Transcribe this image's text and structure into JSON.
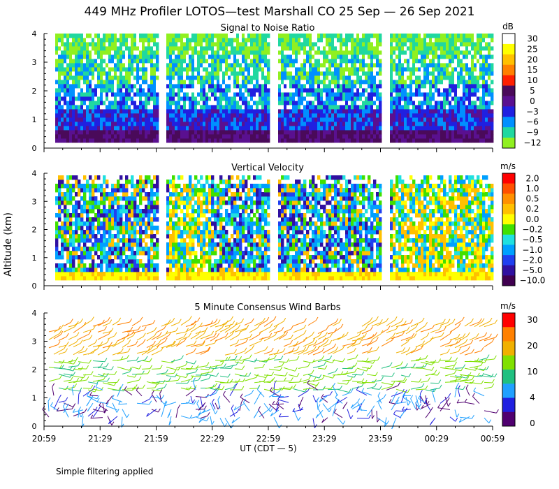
{
  "title": "449 MHz Profiler LOTOS—test Marshall CO 25 Sep — 26 Sep 2021",
  "y_axis_label": "Altitude (km)",
  "x_axis_label": "UT  (CDT — 5)",
  "footnote": "Simple filtering applied",
  "time_ticks": [
    "20:59",
    "21:29",
    "21:59",
    "22:29",
    "22:59",
    "23:29",
    "23:59",
    "00:29",
    "00:59"
  ],
  "altitude_ticks": [
    "0",
    "1",
    "2",
    "3",
    "4"
  ],
  "panels": [
    {
      "title": "Signal to Noise Ratio",
      "unit": "dB",
      "colorbar": {
        "labels": [
          "30",
          "25",
          "20",
          "15",
          "10",
          "5",
          "0",
          "−3",
          "−6",
          "−9",
          "−12"
        ],
        "colors": [
          "#ffffff",
          "#ffff00",
          "#ffc000",
          "#ff8000",
          "#ff2000",
          "#4a0a5a",
          "#5a1090",
          "#2020e0",
          "#0090ff",
          "#20d8a0",
          "#90f020"
        ]
      }
    },
    {
      "title": "Vertical Velocity",
      "unit": "m/s",
      "colorbar": {
        "labels": [
          "2.0",
          "1.0",
          "0.5",
          "0.2",
          "0.0",
          "−0.2",
          "−0.5",
          "−1.0",
          "−2.0",
          "−5.0",
          "−10.0"
        ],
        "colors": [
          "#ff0000",
          "#ff5000",
          "#ff9000",
          "#ffc000",
          "#ffff00",
          "#40e000",
          "#20e0e0",
          "#00a0ff",
          "#2040f0",
          "#3010a0",
          "#400050"
        ]
      }
    },
    {
      "title": "5 Minute Consensus Wind Barbs",
      "unit": "m/s",
      "colorbar": {
        "labels": [
          "30",
          "20",
          "10",
          "4",
          "0"
        ],
        "colors": [
          "#ff0000",
          "#ff8000",
          "#f0b000",
          "#80e000",
          "#20c080",
          "#20a0ff",
          "#2020e0",
          "#500070"
        ]
      }
    }
  ],
  "chart_data": [
    {
      "type": "heatmap",
      "title": "Signal to Noise Ratio",
      "unit": "dB",
      "x_range": [
        "20:59",
        "00:59"
      ],
      "ylim": [
        0,
        4
      ],
      "ylabel": "Altitude (km)",
      "xlabel": "UT  (CDT — 5)",
      "color_levels_dB": [
        30,
        25,
        20,
        15,
        10,
        5,
        0,
        -3,
        -6,
        -9,
        -12
      ],
      "data_gaps": [
        [
          "21:59",
          "22:04"
        ],
        [
          "23:01",
          "23:07"
        ],
        [
          "00:04",
          "00:10"
        ]
      ]
    },
    {
      "type": "heatmap",
      "title": "Vertical Velocity",
      "unit": "m/s",
      "x_range": [
        "20:59",
        "00:59"
      ],
      "ylim": [
        0,
        4
      ],
      "color_levels_ms": [
        2.0,
        1.0,
        0.5,
        0.2,
        0.0,
        -0.2,
        -0.5,
        -1.0,
        -2.0,
        -5.0,
        -10.0
      ]
    },
    {
      "type": "scatter",
      "title": "5 Minute Consensus Wind Barbs",
      "unit": "m/s",
      "x_range": [
        "20:59",
        "00:59"
      ],
      "ylim": [
        0,
        4
      ],
      "color_levels_ms": [
        30,
        20,
        10,
        4,
        0
      ],
      "speed_by_altitude_km": [
        {
          "range": [
            0.2,
            1.3
          ],
          "speed": "0–4"
        },
        {
          "range": [
            1.3,
            2.4
          ],
          "speed": "4–10"
        },
        {
          "range": [
            2.4,
            3.1
          ],
          "speed": "10–20"
        },
        {
          "range": [
            3.1,
            3.8
          ],
          "speed": "20–30"
        }
      ]
    }
  ]
}
